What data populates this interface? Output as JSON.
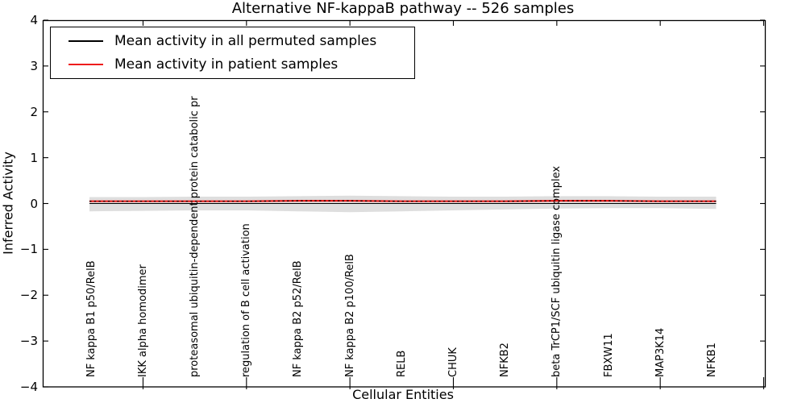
{
  "chart_data": {
    "type": "line",
    "title": "Alternative NF-kappaB pathway -- 526 samples",
    "xlabel": "Cellular Entities",
    "ylabel": "Inferred Activity",
    "ylim": [
      -4,
      4
    ],
    "yticks": [
      4,
      3,
      2,
      1,
      0,
      -1,
      -2,
      -3,
      -4
    ],
    "grid": false,
    "legend_position": "upper left",
    "categories": [
      "NF kappa B1 p50/RelB",
      "IKK alpha homodimer",
      "proteasomal ubiquitin-dependent protein catabolic pr",
      "regulation of B cell activation",
      "NF kappa B2 p52/RelB",
      "NF kappa B2 p100/RelB",
      "RELB",
      "CHUK",
      "NFKB2",
      "beta TrCP1/SCF ubiquitin ligase complex",
      "FBXW11",
      "MAP3K14",
      "NFKB1"
    ],
    "series": [
      {
        "name": "Mean activity in all permuted samples",
        "color": "#000000",
        "line_style": "solid",
        "values": [
          0,
          0,
          0,
          0,
          0,
          0,
          0,
          0,
          0,
          0,
          0,
          0,
          0
        ]
      },
      {
        "name": "Mean activity in patient samples",
        "color": "#ee1c1c",
        "line_style": "solid",
        "values": [
          0.05,
          0.05,
          0.05,
          0.05,
          0.06,
          0.06,
          0.05,
          0.05,
          0.05,
          0.06,
          0.06,
          0.05,
          0.05
        ]
      }
    ],
    "band": {
      "name": "permuted-samples-range",
      "color": "#000000",
      "opacity": 0.13,
      "upper": [
        0.14,
        0.14,
        0.15,
        0.15,
        0.16,
        0.17,
        0.16,
        0.15,
        0.15,
        0.16,
        0.16,
        0.15,
        0.15
      ],
      "lower": [
        -0.17,
        -0.16,
        -0.15,
        -0.15,
        -0.17,
        -0.19,
        -0.17,
        -0.15,
        -0.13,
        -0.11,
        -0.1,
        -0.1,
        -0.12
      ]
    }
  }
}
